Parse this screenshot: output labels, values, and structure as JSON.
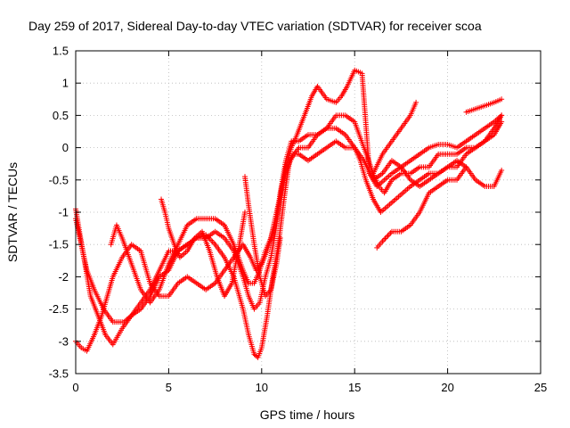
{
  "chart_data": {
    "type": "scatter",
    "title": "Day 259 of 2017, Sidereal Day-to-day VTEC variation (SDTVAR) for receiver scoa",
    "xlabel": "GPS time / hours",
    "ylabel": "SDTVAR / TECUs",
    "xlim": [
      0,
      25
    ],
    "ylim": [
      -3.5,
      1.5
    ],
    "xticks": [
      0,
      5,
      10,
      15,
      20,
      25
    ],
    "yticks": [
      -3.5,
      -3,
      -2.5,
      -2,
      -1.5,
      -1,
      -0.5,
      0,
      0.5,
      1,
      1.5
    ],
    "grid": true,
    "marker": "plus",
    "color": "#ff0000",
    "series": [
      {
        "x": [
          0.0,
          0.3,
          0.6,
          1.0,
          1.5,
          2.0,
          2.3,
          2.6,
          3.0,
          3.5,
          4.0,
          4.5,
          5.0,
          5.5,
          6.0,
          6.5,
          7.0,
          7.5,
          8.0,
          8.5,
          9.0,
          9.3,
          9.6,
          9.9,
          10.2,
          10.5,
          10.8,
          11.0,
          11.3,
          11.6,
          12.0,
          12.5,
          13.0,
          13.5,
          14.0,
          14.5,
          15.0,
          15.5,
          16.0,
          16.3,
          16.6,
          17.0,
          17.5,
          18.0,
          18.5,
          19.0,
          19.5,
          20.0,
          20.5,
          21.0,
          21.5,
          22.0,
          22.5,
          22.9
        ],
        "y": [
          -1.1,
          -1.5,
          -1.9,
          -2.2,
          -2.5,
          -2.7,
          -2.7,
          -2.7,
          -2.6,
          -2.5,
          -2.3,
          -2.0,
          -1.9,
          -1.6,
          -1.5,
          -1.4,
          -1.4,
          -1.3,
          -1.4,
          -1.6,
          -2.0,
          -2.3,
          -2.5,
          -2.4,
          -2.0,
          -1.7,
          -1.2,
          -0.7,
          -0.2,
          0.1,
          0.1,
          0.2,
          0.2,
          0.3,
          0.5,
          0.5,
          0.4,
          0.0,
          -0.4,
          -0.6,
          -0.7,
          -0.5,
          -0.4,
          -0.4,
          -0.3,
          -0.3,
          -0.1,
          -0.1,
          -0.1,
          0.0,
          0.0,
          0.1,
          0.3,
          0.5
        ]
      },
      {
        "x": [
          0.0,
          0.2,
          0.5,
          0.8,
          1.2,
          1.6,
          2.0,
          2.5,
          3.0,
          3.5,
          4.0,
          4.5,
          5.0,
          5.5,
          6.0,
          6.5,
          7.0,
          7.5,
          8.0,
          8.5,
          9.0,
          9.3,
          9.6,
          9.8,
          10.0,
          10.3,
          10.6,
          10.9,
          11.2,
          11.5,
          12.0,
          12.5,
          13.0,
          13.5,
          14.0,
          14.5,
          15.0,
          15.3,
          15.6,
          16.0,
          16.4,
          16.8,
          17.2,
          17.6,
          18.0,
          18.5,
          19.0,
          19.5,
          20.0,
          20.5,
          21.0,
          21.5,
          22.0,
          22.5,
          22.9
        ],
        "y": [
          -0.95,
          -1.3,
          -1.8,
          -2.3,
          -2.6,
          -2.9,
          -3.05,
          -2.8,
          -2.6,
          -2.4,
          -2.2,
          -1.9,
          -1.6,
          -1.6,
          -1.5,
          -1.4,
          -1.35,
          -1.5,
          -1.7,
          -2.0,
          -2.5,
          -2.9,
          -3.2,
          -3.25,
          -3.1,
          -2.6,
          -2.0,
          -1.5,
          -0.8,
          -0.2,
          0.0,
          0.0,
          0.2,
          0.3,
          0.3,
          0.2,
          0.0,
          -0.2,
          -0.5,
          -0.8,
          -1.0,
          -0.9,
          -0.8,
          -0.7,
          -0.6,
          -0.5,
          -0.4,
          -0.4,
          -0.3,
          -0.3,
          -0.1,
          0.0,
          0.1,
          0.2,
          0.4
        ]
      },
      {
        "x": [
          0.0,
          0.3,
          0.6,
          1.0,
          1.4,
          1.8,
          2.0,
          2.5,
          3.0,
          3.5,
          4.0,
          4.5,
          5.0,
          5.5,
          6.0,
          6.5,
          7.0,
          7.5,
          8.0,
          8.5,
          9.0,
          9.4,
          9.7,
          10.0,
          10.3,
          10.6,
          11.0,
          11.3,
          11.6,
          11.9,
          12.3,
          12.7,
          13.0,
          13.5,
          14.0,
          14.3,
          14.6,
          15.0,
          15.4,
          15.8,
          16.2,
          16.6,
          17.0,
          17.5,
          18.0,
          18.5,
          19.0,
          19.5,
          20.0,
          20.5,
          21.0,
          21.5,
          22.0,
          22.5,
          22.9
        ],
        "y": [
          -3.0,
          -3.1,
          -3.15,
          -2.9,
          -2.6,
          -2.2,
          -2.0,
          -1.7,
          -1.5,
          -1.6,
          -2.1,
          -2.3,
          -2.3,
          -2.1,
          -2.0,
          -2.1,
          -2.2,
          -2.1,
          -1.9,
          -1.7,
          -1.5,
          -1.7,
          -1.9,
          -1.8,
          -1.6,
          -1.3,
          -0.8,
          -0.3,
          0.0,
          0.2,
          0.5,
          0.8,
          0.95,
          0.75,
          0.7,
          0.8,
          0.95,
          1.2,
          1.15,
          -0.4,
          -0.6,
          -0.5,
          -0.4,
          -0.3,
          -0.2,
          -0.1,
          0.0,
          0.05,
          0.05,
          0.0,
          0.1,
          0.2,
          0.3,
          0.4,
          0.5
        ]
      },
      {
        "x": [
          1.9,
          2.2,
          2.5,
          3.0,
          3.5,
          4.0,
          4.5,
          5.0,
          5.5,
          6.0,
          6.5,
          7.0,
          7.5,
          8.0,
          8.5,
          9.0,
          9.3,
          9.6,
          9.9,
          10.2,
          10.5,
          10.8,
          11.1,
          11.4,
          11.7,
          12.0,
          12.5,
          13.0,
          13.5,
          14.0,
          14.5,
          15.0,
          15.5,
          16.0,
          16.5,
          17.0,
          17.5,
          18.0,
          18.5,
          19.0,
          19.5,
          20.0,
          20.5,
          21.0,
          21.5,
          22.0,
          22.5,
          22.9
        ],
        "y": [
          -1.5,
          -1.2,
          -1.4,
          -1.8,
          -2.2,
          -2.4,
          -2.2,
          -1.8,
          -1.5,
          -1.2,
          -1.1,
          -1.1,
          -1.1,
          -1.2,
          -1.5,
          -1.9,
          -2.1,
          -2.1,
          -1.9,
          -1.6,
          -1.4,
          -1.0,
          -0.6,
          -0.3,
          -0.1,
          -0.1,
          -0.2,
          -0.1,
          0.0,
          0.1,
          0.0,
          0.0,
          -0.2,
          -0.5,
          -0.4,
          -0.2,
          -0.3,
          -0.5,
          -0.6,
          -0.5,
          -0.4,
          -0.3,
          -0.2,
          -0.3,
          -0.5,
          -0.6,
          -0.6,
          -0.35
        ]
      },
      {
        "x": [
          4.6,
          4.8,
          5.0,
          5.3,
          5.6,
          6.0,
          6.4,
          6.8,
          7.2,
          7.6,
          8.0,
          8.4,
          8.8,
          9.1
        ],
        "y": [
          -0.8,
          -1.0,
          -1.25,
          -1.5,
          -1.7,
          -1.6,
          -1.4,
          -1.3,
          -1.6,
          -2.0,
          -2.3,
          -2.1,
          -1.5,
          -1.0
        ]
      },
      {
        "x": [
          9.1,
          9.3,
          9.6,
          9.9,
          10.2,
          10.5,
          10.8,
          11.0
        ],
        "y": [
          -0.45,
          -0.9,
          -1.5,
          -2.0,
          -2.3,
          -2.2,
          -1.8,
          -1.4
        ]
      },
      {
        "x": [
          16.2,
          16.5,
          17.0,
          17.5,
          18.0,
          18.5,
          19.0,
          19.5,
          20.0,
          20.5,
          21.0
        ],
        "y": [
          -1.55,
          -1.45,
          -1.3,
          -1.3,
          -1.2,
          -1.0,
          -0.7,
          -0.6,
          -0.5,
          -0.5,
          -0.3
        ]
      },
      {
        "x": [
          21.0,
          21.5,
          22.0,
          22.5,
          22.9
        ],
        "y": [
          0.55,
          0.6,
          0.65,
          0.7,
          0.75
        ]
      },
      {
        "x": [
          16.0,
          16.5,
          17.0,
          17.5,
          18.0,
          18.3
        ],
        "y": [
          -0.4,
          -0.1,
          0.1,
          0.3,
          0.5,
          0.7
        ]
      }
    ]
  }
}
